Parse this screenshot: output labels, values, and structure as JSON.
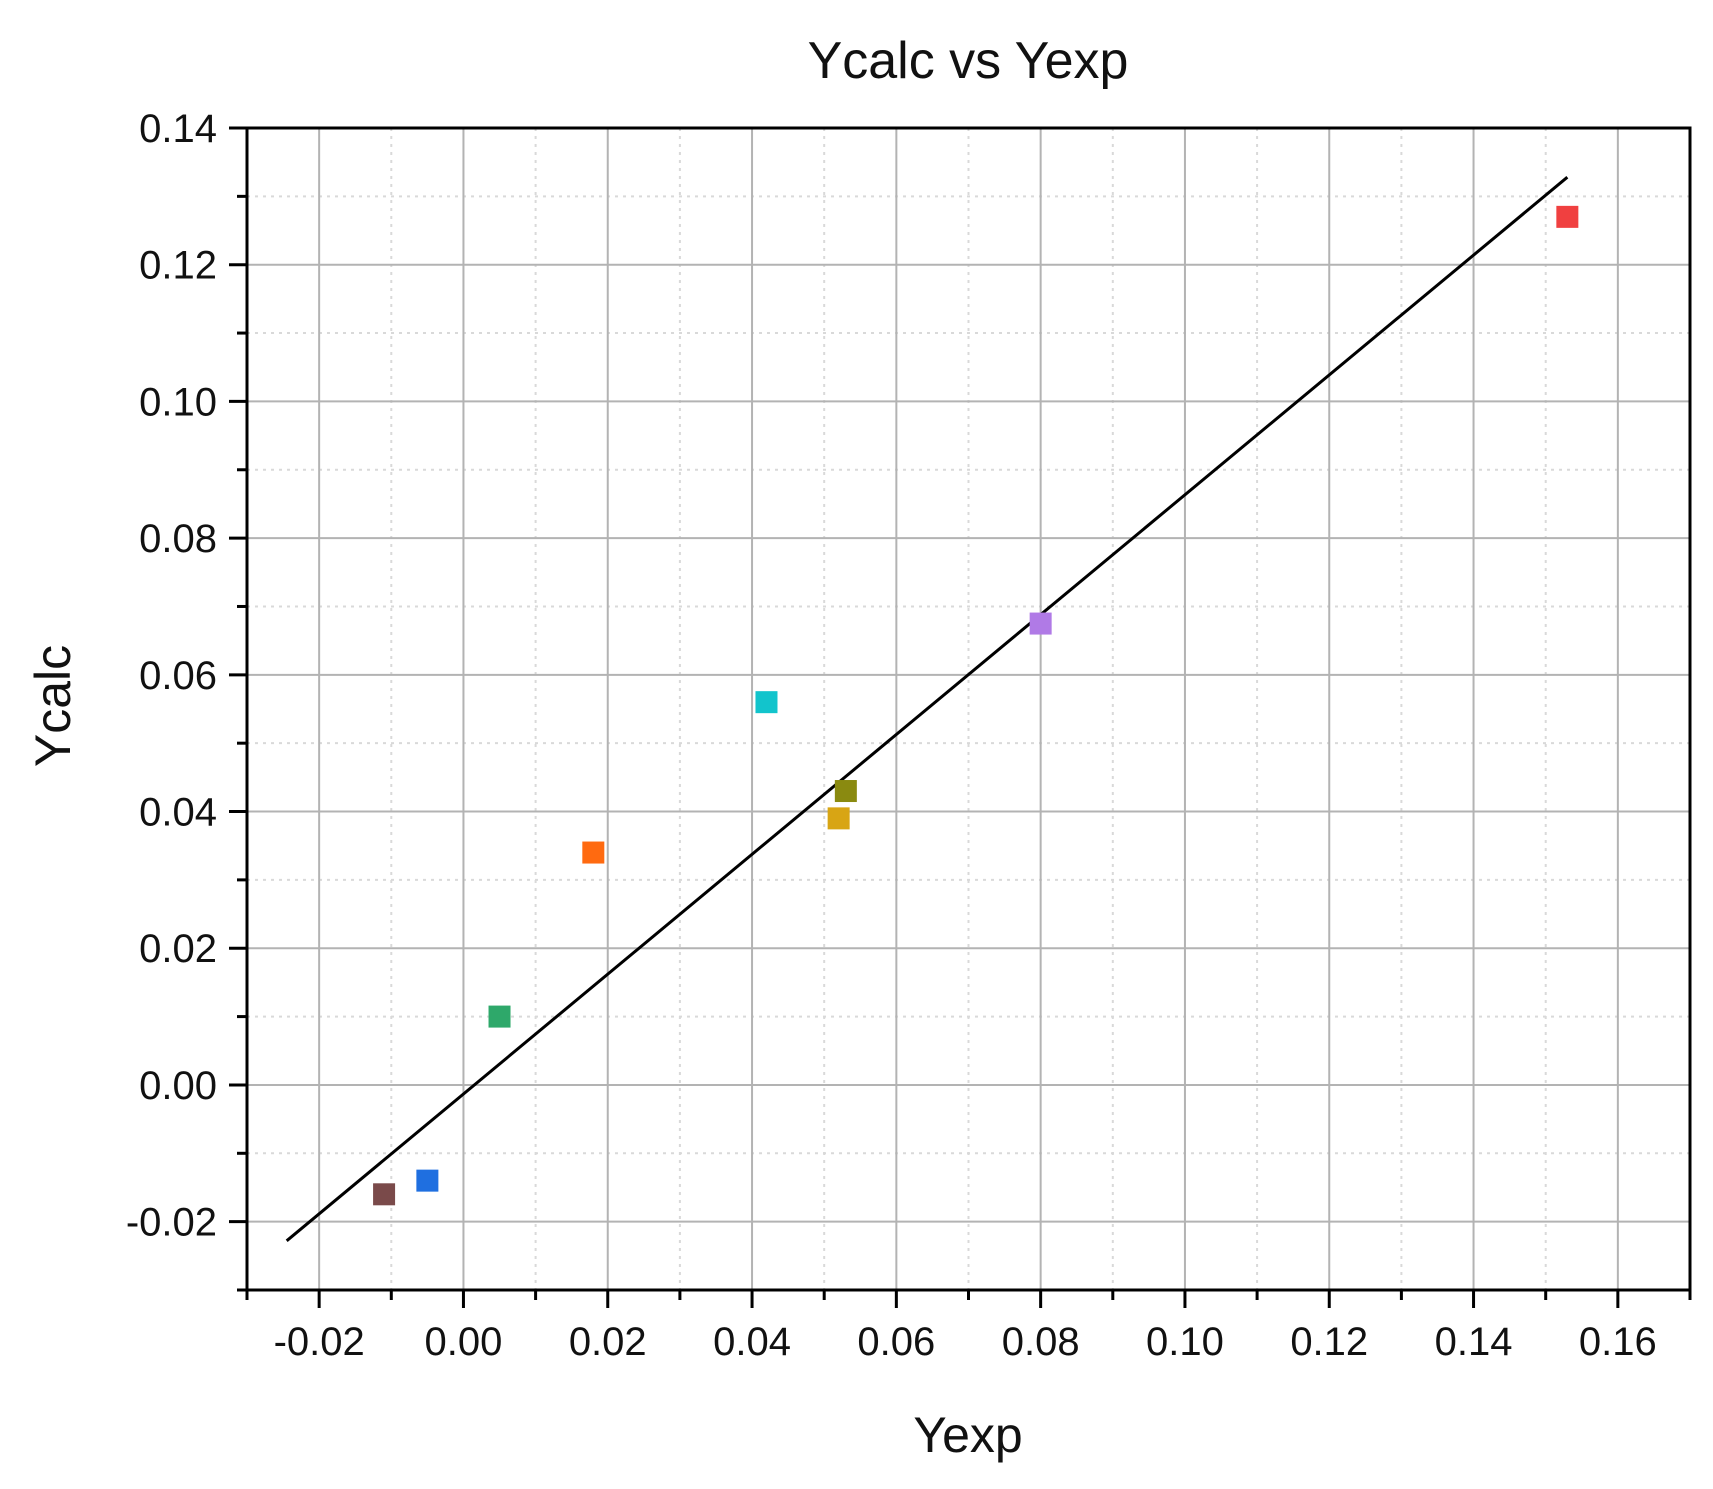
{
  "chart_data": {
    "type": "scatter",
    "title": "Ycalc vs Yexp",
    "xlabel": "Yexp",
    "ylabel": "Ycalc",
    "xlim": [
      -0.03,
      0.17
    ],
    "ylim": [
      -0.03,
      0.14
    ],
    "xticks": [
      -0.02,
      0.0,
      0.02,
      0.04,
      0.06,
      0.08,
      0.1,
      0.12,
      0.14,
      0.16
    ],
    "xtick_labels": [
      "-0.02",
      "0.00",
      "0.02",
      "0.04",
      "0.06",
      "0.08",
      "0.10",
      "0.12",
      "0.14",
      "0.16"
    ],
    "yticks": [
      -0.02,
      0.0,
      0.02,
      0.04,
      0.06,
      0.08,
      0.1,
      0.12,
      0.14
    ],
    "ytick_labels": [
      "-0.02",
      "0.00",
      "0.02",
      "0.04",
      "0.06",
      "0.08",
      "0.10",
      "0.12",
      "0.14"
    ],
    "grid": true,
    "legend": "none",
    "points": [
      {
        "x": -0.011,
        "y": -0.016,
        "color": "#7a4a4a"
      },
      {
        "x": -0.005,
        "y": -0.014,
        "color": "#1f6fe0"
      },
      {
        "x": 0.005,
        "y": 0.01,
        "color": "#2ea86a"
      },
      {
        "x": 0.018,
        "y": 0.034,
        "color": "#ff6a10"
      },
      {
        "x": 0.042,
        "y": 0.056,
        "color": "#12c4cc"
      },
      {
        "x": 0.052,
        "y": 0.039,
        "color": "#d8a514"
      },
      {
        "x": 0.053,
        "y": 0.043,
        "color": "#8a8a10"
      },
      {
        "x": 0.08,
        "y": 0.0675,
        "color": "#b07ae6"
      },
      {
        "x": 0.153,
        "y": 0.127,
        "color": "#f04040"
      }
    ],
    "fit_line": {
      "x": [
        -0.0245,
        0.153
      ],
      "y": [
        -0.0228,
        0.1328
      ],
      "color": "#000000"
    }
  }
}
